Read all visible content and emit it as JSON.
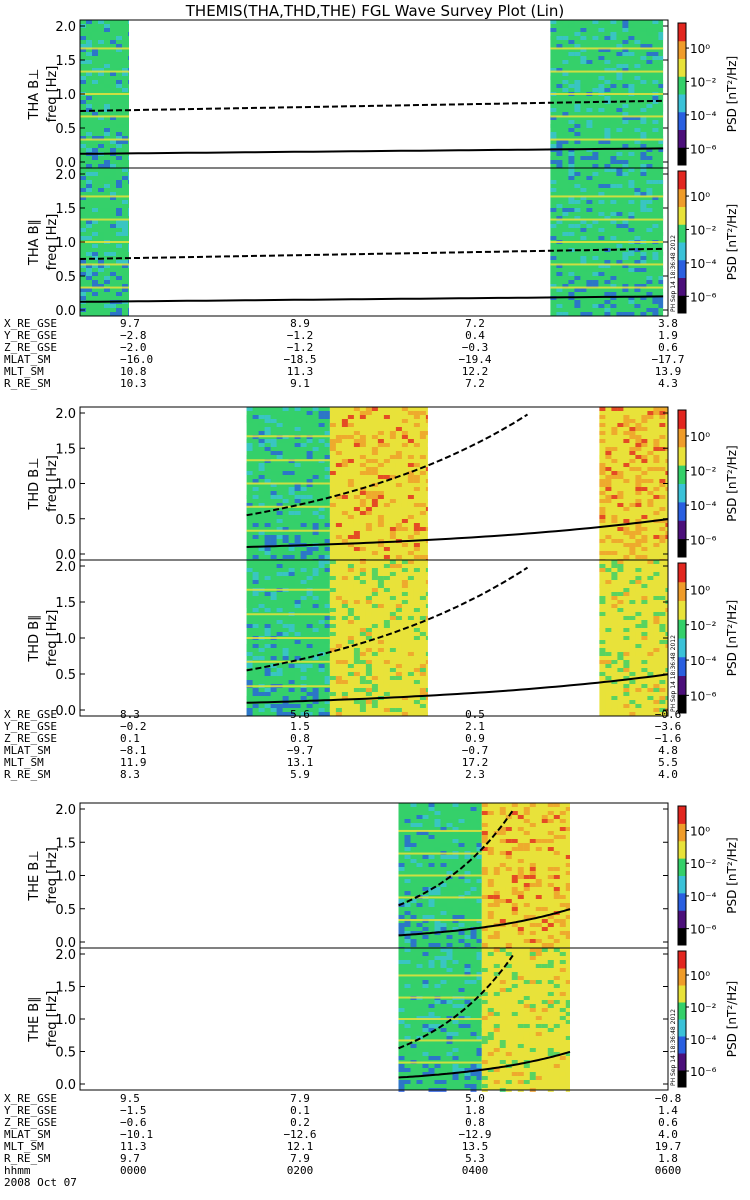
{
  "page": {
    "title": "THEMIS(THA,THD,THE) FGL Wave Survey Plot (Lin)",
    "date_label": "2008 Oct 07",
    "stamp": "PH Sep 14 18:36:48 2012"
  },
  "colorbar": {
    "label": "PSD [nT²/Hz]",
    "ticks": [
      "10⁰",
      "10⁻²",
      "10⁻⁴",
      "10⁻⁶"
    ],
    "tick_exponents": [
      0,
      -2,
      -4,
      -6
    ],
    "range_exponent": [
      -7,
      1.5
    ]
  },
  "chart_data": {
    "type": "heatmap",
    "x_range_hours": [
      0.0,
      6.0
    ],
    "y_range_hz": [
      0.0,
      2.0
    ],
    "y_ticks": [
      "0.0",
      "0.5",
      "1.0",
      "1.5",
      "2.0"
    ],
    "colors": {
      "green": "#35d06a",
      "cyan": "#3bc2d8",
      "blue": "#2a5fe0",
      "yellow": "#e8e23a",
      "orange": "#ef9c2a",
      "red": "#e2261f",
      "black_curve": "#000000"
    },
    "probes": [
      {
        "name": "THA",
        "panels": [
          {
            "label": "THA B⊥",
            "ylabel": "freq [Hz]",
            "segments": [
              {
                "x": [
                  0.0,
                  0.5
                ],
                "palette": "low"
              },
              {
                "x": [
                  4.8,
                  5.95
                ],
                "palette": "low"
              }
            ]
          },
          {
            "label": "THA B∥",
            "ylabel": "freq [Hz]",
            "segments": [
              {
                "x": [
                  0.0,
                  0.5
                ],
                "palette": "low"
              },
              {
                "x": [
                  4.8,
                  5.95
                ],
                "palette": "low"
              }
            ]
          }
        ],
        "ephemeris": {
          "columns": [
            "0000",
            "0200",
            "0400",
            "0600"
          ],
          "rows": [
            {
              "label": "X_RE_GSE",
              "values": [
                "9.7",
                "8.9",
                "7.2",
                "3.8"
              ]
            },
            {
              "label": "Y_RE_GSE",
              "values": [
                "−2.8",
                "−1.2",
                "0.4",
                "1.9"
              ]
            },
            {
              "label": "Z_RE_GSE",
              "values": [
                "−2.0",
                "−1.2",
                "−0.3",
                "0.6"
              ]
            },
            {
              "label": "MLAT_SM",
              "values": [
                "−16.0",
                "−18.5",
                "−19.4",
                "−17.7"
              ]
            },
            {
              "label": "MLT_SM",
              "values": [
                "10.8",
                "11.3",
                "12.2",
                "13.9"
              ]
            },
            {
              "label": "R_RE_SM",
              "values": [
                "10.3",
                "9.1",
                "7.2",
                "4.3"
              ]
            }
          ]
        }
      },
      {
        "name": "THD",
        "panels": [
          {
            "label": "THD B⊥",
            "ylabel": "freq [Hz]",
            "segments": [
              {
                "x": [
                  1.7,
                  2.55
                ],
                "palette": "low"
              },
              {
                "x": [
                  2.55,
                  3.55
                ],
                "palette": "high"
              },
              {
                "x": [
                  5.3,
                  6.0
                ],
                "palette": "high"
              }
            ]
          },
          {
            "label": "THD B∥",
            "ylabel": "freq [Hz]",
            "segments": [
              {
                "x": [
                  1.7,
                  2.55
                ],
                "palette": "low"
              },
              {
                "x": [
                  2.55,
                  3.55
                ],
                "palette": "mid"
              },
              {
                "x": [
                  5.3,
                  6.0
                ],
                "palette": "mid"
              }
            ]
          }
        ],
        "ephemeris": {
          "columns": [
            "0000",
            "0200",
            "0400",
            "0600"
          ],
          "rows": [
            {
              "label": "X_RE_GSE",
              "values": [
                "8.3",
                "5.6",
                "0.5",
                "−0.6"
              ]
            },
            {
              "label": "Y_RE_GSE",
              "values": [
                "−0.2",
                "1.5",
                "2.1",
                "−3.6"
              ]
            },
            {
              "label": "Z_RE_GSE",
              "values": [
                "0.1",
                "0.8",
                "0.9",
                "−1.6"
              ]
            },
            {
              "label": "MLAT_SM",
              "values": [
                "−8.1",
                "−9.7",
                "−0.7",
                "4.8"
              ]
            },
            {
              "label": "MLT_SM",
              "values": [
                "11.9",
                "13.1",
                "17.2",
                "5.5"
              ]
            },
            {
              "label": "R_RE_SM",
              "values": [
                "8.3",
                "5.9",
                "2.3",
                "4.0"
              ]
            }
          ]
        }
      },
      {
        "name": "THE",
        "panels": [
          {
            "label": "THE B⊥",
            "ylabel": "freq [Hz]",
            "segments": [
              {
                "x": [
                  3.25,
                  4.1
                ],
                "palette": "low"
              },
              {
                "x": [
                  4.1,
                  5.0
                ],
                "palette": "high"
              }
            ]
          },
          {
            "label": "THE B∥",
            "ylabel": "freq [Hz]",
            "segments": [
              {
                "x": [
                  3.25,
                  4.1
                ],
                "palette": "low"
              },
              {
                "x": [
                  4.1,
                  5.0
                ],
                "palette": "mid"
              }
            ]
          }
        ],
        "ephemeris": {
          "columns": [
            "0000",
            "0200",
            "0400",
            "0600"
          ],
          "rows": [
            {
              "label": "X_RE_GSE",
              "values": [
                "9.5",
                "7.9",
                "5.0",
                "−0.8"
              ]
            },
            {
              "label": "Y_RE_GSE",
              "values": [
                "−1.5",
                "0.1",
                "1.8",
                "1.4"
              ]
            },
            {
              "label": "Z_RE_GSE",
              "values": [
                "−0.6",
                "0.2",
                "0.8",
                "0.6"
              ]
            },
            {
              "label": "MLAT_SM",
              "values": [
                "−10.1",
                "−12.6",
                "−12.9",
                "4.0"
              ]
            },
            {
              "label": "MLT_SM",
              "values": [
                "11.3",
                "12.1",
                "13.5",
                "19.7"
              ]
            },
            {
              "label": "R_RE_SM",
              "values": [
                "9.7",
                "7.9",
                "5.3",
                "1.8"
              ]
            }
          ]
        }
      }
    ],
    "time_axis": {
      "label": "hhmm",
      "ticks": [
        "0000",
        "0200",
        "0400",
        "0600"
      ]
    }
  }
}
